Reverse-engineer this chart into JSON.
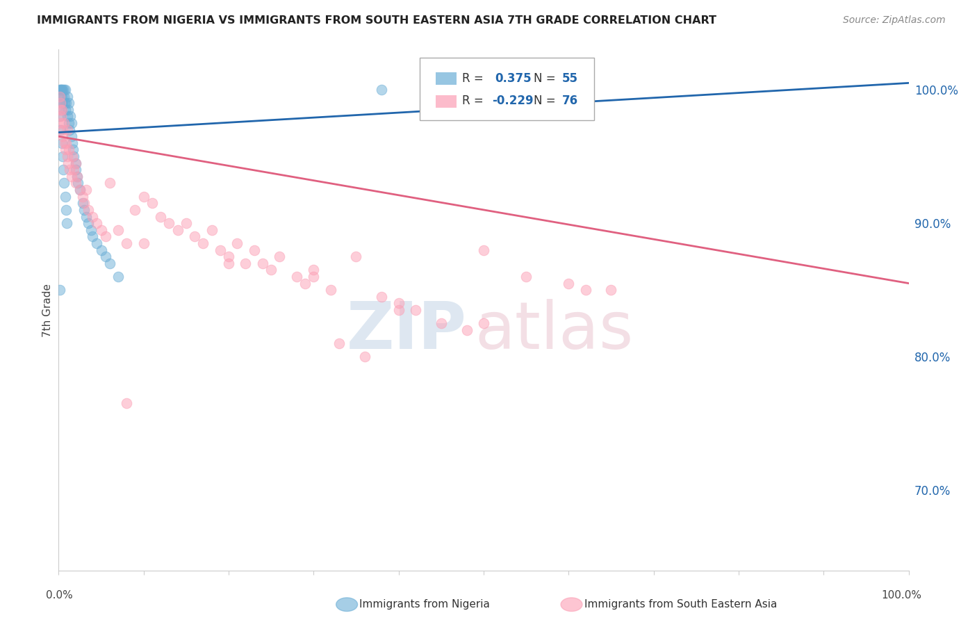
{
  "title": "IMMIGRANTS FROM NIGERIA VS IMMIGRANTS FROM SOUTH EASTERN ASIA 7TH GRADE CORRELATION CHART",
  "source": "Source: ZipAtlas.com",
  "ylabel": "7th Grade",
  "r_blue": 0.375,
  "n_blue": 55,
  "r_pink": -0.229,
  "n_pink": 76,
  "legend_label_blue": "Immigrants from Nigeria",
  "legend_label_pink": "Immigrants from South Eastern Asia",
  "blue_color": "#6baed6",
  "pink_color": "#fc9fb5",
  "blue_line_color": "#2166ac",
  "pink_line_color": "#e06080",
  "blue_x": [
    0.1,
    0.2,
    0.2,
    0.3,
    0.3,
    0.3,
    0.4,
    0.4,
    0.5,
    0.5,
    0.6,
    0.6,
    0.7,
    0.8,
    0.8,
    0.9,
    1.0,
    1.0,
    1.1,
    1.2,
    1.2,
    1.3,
    1.4,
    1.5,
    1.5,
    1.6,
    1.7,
    1.8,
    2.0,
    2.0,
    2.2,
    2.3,
    2.5,
    2.8,
    3.0,
    3.2,
    3.5,
    3.8,
    4.0,
    4.5,
    5.0,
    5.5,
    6.0,
    7.0,
    0.15,
    0.25,
    0.35,
    0.45,
    0.55,
    0.65,
    0.75,
    0.85,
    0.95,
    38.0,
    0.1
  ],
  "blue_y": [
    100.0,
    100.0,
    99.5,
    100.0,
    99.0,
    98.5,
    100.0,
    99.5,
    100.0,
    99.0,
    100.0,
    99.5,
    99.0,
    100.0,
    98.5,
    99.0,
    99.5,
    98.0,
    98.5,
    99.0,
    97.5,
    97.0,
    98.0,
    97.5,
    96.5,
    96.0,
    95.5,
    95.0,
    94.5,
    94.0,
    93.5,
    93.0,
    92.5,
    91.5,
    91.0,
    90.5,
    90.0,
    89.5,
    89.0,
    88.5,
    88.0,
    87.5,
    87.0,
    86.0,
    98.0,
    97.0,
    96.0,
    95.0,
    94.0,
    93.0,
    92.0,
    91.0,
    90.0,
    100.0,
    85.0
  ],
  "pink_x": [
    0.1,
    0.2,
    0.2,
    0.3,
    0.3,
    0.4,
    0.5,
    0.5,
    0.6,
    0.7,
    0.8,
    0.9,
    1.0,
    1.0,
    1.1,
    1.2,
    1.3,
    1.5,
    1.6,
    1.8,
    2.0,
    2.0,
    2.2,
    2.5,
    2.8,
    3.0,
    3.2,
    3.5,
    4.0,
    4.5,
    5.0,
    5.5,
    6.0,
    7.0,
    8.0,
    9.0,
    10.0,
    11.0,
    12.0,
    13.0,
    14.0,
    15.0,
    16.0,
    17.0,
    18.0,
    19.0,
    20.0,
    21.0,
    22.0,
    23.0,
    24.0,
    25.0,
    26.0,
    28.0,
    30.0,
    32.0,
    35.0,
    38.0,
    40.0,
    42.0,
    45.0,
    48.0,
    50.0,
    55.0,
    60.0,
    65.0,
    29.0,
    33.0,
    36.0,
    10.0,
    20.0,
    30.0,
    40.0,
    50.0,
    62.0,
    8.0
  ],
  "pink_y": [
    99.5,
    99.0,
    98.5,
    98.0,
    97.5,
    98.5,
    97.0,
    96.5,
    97.5,
    96.0,
    95.5,
    96.0,
    97.0,
    95.0,
    94.5,
    95.5,
    94.0,
    93.5,
    95.0,
    94.0,
    93.0,
    94.5,
    93.5,
    92.5,
    92.0,
    91.5,
    92.5,
    91.0,
    90.5,
    90.0,
    89.5,
    89.0,
    93.0,
    89.5,
    88.5,
    91.0,
    92.0,
    91.5,
    90.5,
    90.0,
    89.5,
    90.0,
    89.0,
    88.5,
    89.5,
    88.0,
    87.5,
    88.5,
    87.0,
    88.0,
    87.0,
    86.5,
    87.5,
    86.0,
    86.5,
    85.0,
    87.5,
    84.5,
    84.0,
    83.5,
    82.5,
    82.0,
    88.0,
    86.0,
    85.5,
    85.0,
    85.5,
    81.0,
    80.0,
    88.5,
    87.0,
    86.0,
    83.5,
    82.5,
    85.0,
    76.5
  ],
  "ymin": 64.0,
  "ymax": 103.0,
  "xmin": 0.0,
  "xmax": 100.0,
  "yticks": [
    70.0,
    80.0,
    90.0,
    100.0
  ],
  "ytick_labels": [
    "70.0%",
    "80.0%",
    "90.0%",
    "100.0%"
  ],
  "blue_line_x0": 0.0,
  "blue_line_y0": 96.8,
  "blue_line_x1": 100.0,
  "blue_line_y1": 100.5,
  "pink_line_x0": 0.0,
  "pink_line_y0": 96.5,
  "pink_line_x1": 100.0,
  "pink_line_y1": 85.5
}
